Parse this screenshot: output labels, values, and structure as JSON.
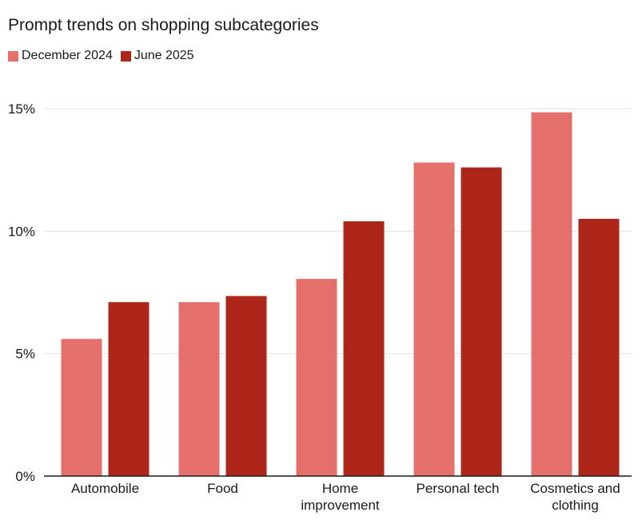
{
  "chart_data": {
    "type": "bar",
    "title": "Prompt trends on shopping subcategories",
    "categories": [
      [
        "Automobile"
      ],
      [
        "Food"
      ],
      [
        "Home",
        "improvement"
      ],
      [
        "Personal tech"
      ],
      [
        "Cosmetics and",
        "clothing"
      ]
    ],
    "series": [
      {
        "name": "December 2024",
        "color": "#e5706b",
        "values": [
          5.6,
          7.1,
          8.05,
          12.8,
          14.85
        ]
      },
      {
        "name": "June 2025",
        "color": "#ae251a",
        "values": [
          7.1,
          7.35,
          10.4,
          12.6,
          10.5
        ]
      }
    ],
    "yticks": [
      0,
      5,
      10,
      15
    ],
    "ytick_labels": [
      "0%",
      "5%",
      "10%",
      "15%"
    ],
    "ylim": [
      0,
      15
    ],
    "grid": true,
    "legend_position": "top-left"
  }
}
